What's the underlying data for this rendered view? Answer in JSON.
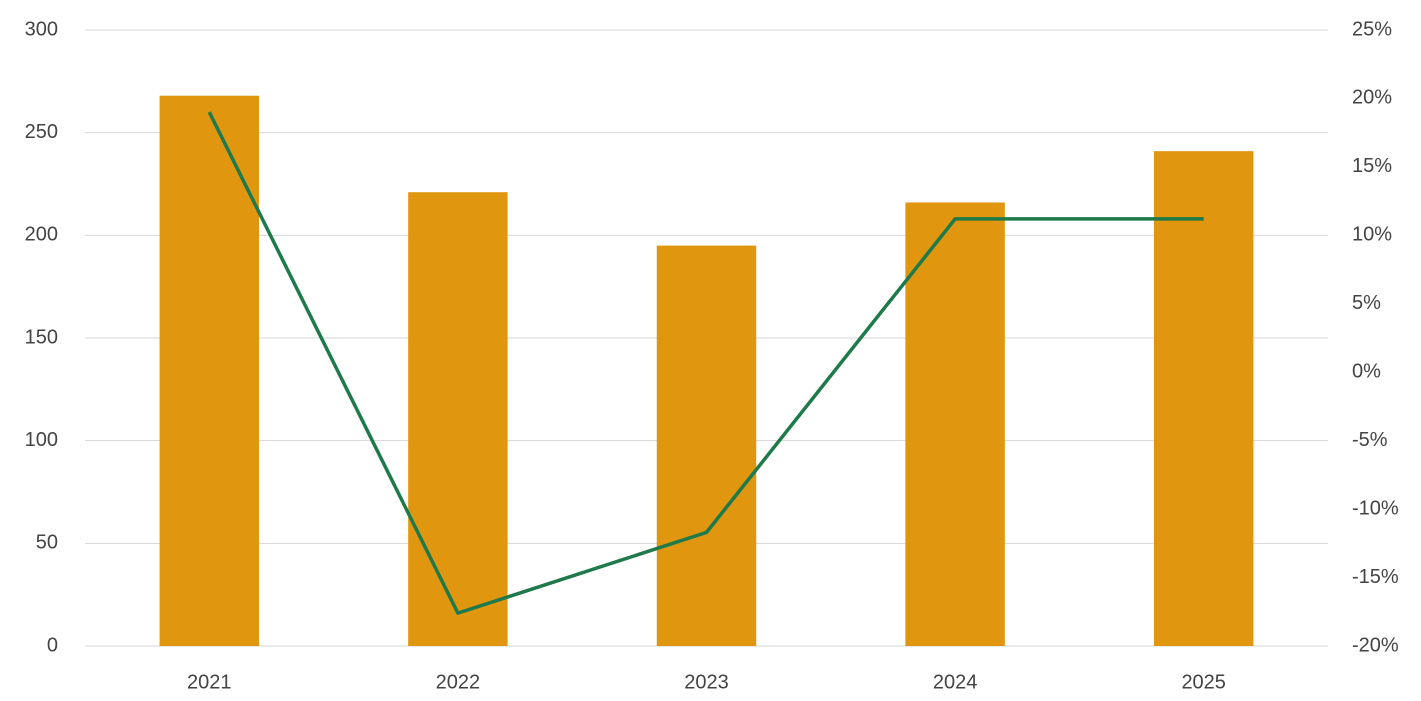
{
  "chart_data": {
    "type": "bar",
    "categories": [
      "2021",
      "2022",
      "2023",
      "2024",
      "2025"
    ],
    "series": [
      {
        "type": "bar",
        "color": "#e0960f",
        "values": [
          268,
          221,
          195,
          216,
          241
        ]
      },
      {
        "type": "line",
        "axis": "y2",
        "color": "#1e7a4a",
        "values": [
          19,
          -17.6,
          -11.7,
          11.2,
          11.2
        ]
      }
    ],
    "ylim": [
      0,
      300
    ],
    "yticks": [
      0,
      50,
      100,
      150,
      200,
      250,
      300
    ],
    "y2lim": [
      -20,
      25
    ],
    "y2ticks": [
      {
        "value": -20,
        "label": "-20%"
      },
      {
        "value": -15,
        "label": "-15%"
      },
      {
        "value": -10,
        "label": "-10%"
      },
      {
        "value": -5,
        "label": "-5%"
      },
      {
        "value": 0,
        "label": "0%"
      },
      {
        "value": 5,
        "label": "5%"
      },
      {
        "value": 10,
        "label": "10%"
      },
      {
        "value": 15,
        "label": "15%"
      },
      {
        "value": 20,
        "label": "20%"
      },
      {
        "value": 25,
        "label": "25%"
      }
    ],
    "grid": true
  }
}
